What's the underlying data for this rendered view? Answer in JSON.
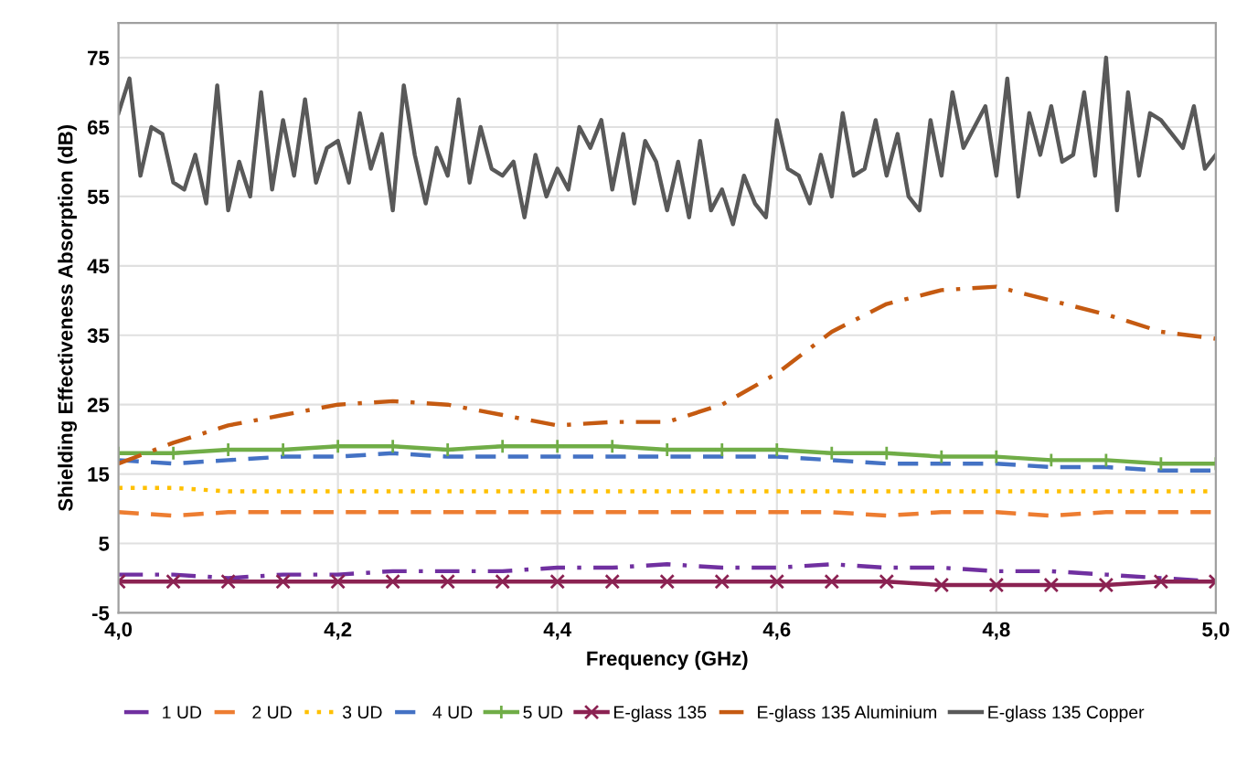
{
  "chart_data": {
    "type": "line",
    "xlabel": "Frequency (GHz)",
    "ylabel": "Shielding Effectiveness Absorption (dB)",
    "xlim": [
      4.0,
      5.0
    ],
    "ylim": [
      -5,
      80
    ],
    "xticks": [
      {
        "value": 4.0,
        "label": "4,0"
      },
      {
        "value": 4.2,
        "label": "4,2"
      },
      {
        "value": 4.4,
        "label": "4,4"
      },
      {
        "value": 4.6,
        "label": "4,6"
      },
      {
        "value": 4.8,
        "label": "4,8"
      },
      {
        "value": 5.0,
        "label": "5,0"
      }
    ],
    "yticks": [
      -5,
      5,
      15,
      25,
      35,
      45,
      55,
      65,
      75
    ],
    "grid": true,
    "legend": "bottom",
    "x": [
      4.0,
      4.05,
      4.1,
      4.15,
      4.2,
      4.25,
      4.3,
      4.35,
      4.4,
      4.45,
      4.5,
      4.55,
      4.6,
      4.65,
      4.7,
      4.75,
      4.8,
      4.85,
      4.9,
      4.95,
      5.0
    ],
    "series": [
      {
        "name": "1 UD",
        "color": "#7030a0",
        "line_style": "dashdot",
        "values": [
          0.5,
          0.5,
          0,
          0.5,
          0.5,
          1,
          1,
          1,
          1.5,
          1.5,
          2,
          1.5,
          1.5,
          2,
          1.5,
          1.5,
          1,
          1,
          0.5,
          0,
          -0.5
        ]
      },
      {
        "name": "2 UD",
        "color": "#ed7d31",
        "line_style": "dashed",
        "values": [
          9.5,
          9,
          9.5,
          9.5,
          9.5,
          9.5,
          9.5,
          9.5,
          9.5,
          9.5,
          9.5,
          9.5,
          9.5,
          9.5,
          9,
          9.5,
          9.5,
          9,
          9.5,
          9.5,
          9.5
        ]
      },
      {
        "name": "3 UD",
        "color": "#ffc000",
        "line_style": "dotted",
        "values": [
          13,
          13,
          12.5,
          12.5,
          12.5,
          12.5,
          12.5,
          12.5,
          12.5,
          12.5,
          12.5,
          12.5,
          12.5,
          12.5,
          12.5,
          12.5,
          12.5,
          12.5,
          12.5,
          12.5,
          12.5
        ]
      },
      {
        "name": "4 UD",
        "color": "#4472c4",
        "line_style": "dashed",
        "values": [
          17,
          16.5,
          17,
          17.5,
          17.5,
          18,
          17.5,
          17.5,
          17.5,
          17.5,
          17.5,
          17.5,
          17.5,
          17,
          16.5,
          16.5,
          16.5,
          16,
          16,
          15.5,
          15.5
        ]
      },
      {
        "name": "5 UD",
        "color": "#70ad47",
        "line_style": "solid",
        "marker": "plus",
        "values": [
          18,
          18,
          18.5,
          18.5,
          19,
          19,
          18.5,
          19,
          19,
          19,
          18.5,
          18.5,
          18.5,
          18,
          18,
          17.5,
          17.5,
          17,
          17,
          16.5,
          16.5
        ]
      },
      {
        "name": "E-glass 135",
        "color": "#8b2252",
        "line_style": "solid",
        "marker": "cross",
        "values": [
          -0.5,
          -0.5,
          -0.5,
          -0.5,
          -0.5,
          -0.5,
          -0.5,
          -0.5,
          -0.5,
          -0.5,
          -0.5,
          -0.5,
          -0.5,
          -0.5,
          -0.5,
          -1,
          -1,
          -1,
          -1,
          -0.5,
          -0.5
        ]
      },
      {
        "name": "E-glass 135 Aluminium",
        "color": "#c55a11",
        "line_style": "dashdot",
        "values": [
          16.5,
          19.5,
          22,
          23.5,
          25,
          25.5,
          25,
          23.5,
          22,
          22.5,
          22.5,
          25,
          29.5,
          35.5,
          39.5,
          41.5,
          42,
          40,
          38,
          35.5,
          34.5
        ]
      },
      {
        "name": "E-glass 135 Copper",
        "color": "#595959",
        "line_style": "solid",
        "x": [
          4.0,
          4.01,
          4.02,
          4.03,
          4.04,
          4.05,
          4.06,
          4.07,
          4.08,
          4.09,
          4.1,
          4.11,
          4.12,
          4.13,
          4.14,
          4.15,
          4.16,
          4.17,
          4.18,
          4.19,
          4.2,
          4.21,
          4.22,
          4.23,
          4.24,
          4.25,
          4.26,
          4.27,
          4.28,
          4.29,
          4.3,
          4.31,
          4.32,
          4.33,
          4.34,
          4.35,
          4.36,
          4.37,
          4.38,
          4.39,
          4.4,
          4.41,
          4.42,
          4.43,
          4.44,
          4.45,
          4.46,
          4.47,
          4.48,
          4.49,
          4.5,
          4.51,
          4.52,
          4.53,
          4.54,
          4.55,
          4.56,
          4.57,
          4.58,
          4.59,
          4.6,
          4.61,
          4.62,
          4.63,
          4.64,
          4.65,
          4.66,
          4.67,
          4.68,
          4.69,
          4.7,
          4.71,
          4.72,
          4.73,
          4.74,
          4.75,
          4.76,
          4.77,
          4.78,
          4.79,
          4.8,
          4.81,
          4.82,
          4.83,
          4.84,
          4.85,
          4.86,
          4.87,
          4.88,
          4.89,
          4.9,
          4.91,
          4.92,
          4.93,
          4.94,
          4.95,
          4.96,
          4.97,
          4.98,
          4.99,
          5.0
        ],
        "values": [
          67,
          72,
          58,
          65,
          64,
          57,
          56,
          61,
          54,
          71,
          53,
          60,
          55,
          70,
          56,
          66,
          58,
          69,
          57,
          62,
          63,
          57,
          67,
          59,
          64,
          53,
          71,
          61,
          54,
          62,
          58,
          69,
          57,
          65,
          59,
          58,
          60,
          52,
          61,
          55,
          59,
          56,
          65,
          62,
          66,
          56,
          64,
          54,
          63,
          60,
          53,
          60,
          52,
          63,
          53,
          56,
          51,
          58,
          54,
          52,
          66,
          59,
          58,
          54,
          61,
          55,
          67,
          58,
          59,
          66,
          58,
          64,
          55,
          53,
          66,
          58,
          70,
          62,
          65,
          68,
          58,
          72,
          55,
          67,
          61,
          68,
          60,
          61,
          70,
          58,
          75,
          53,
          70,
          58,
          67,
          66,
          64,
          62,
          68,
          59,
          61
        ]
      }
    ]
  }
}
